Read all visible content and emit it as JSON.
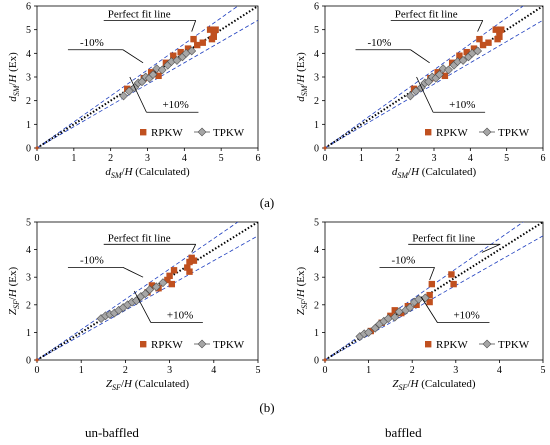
{
  "figure": {
    "panel_labels": [
      "(a)",
      "(b)"
    ],
    "bottom_labels": [
      "un-baffled",
      "baffled"
    ]
  },
  "colors": {
    "rpkw": "#c0501f",
    "tpkw": "#a6a6a6",
    "tpkw_edge": "#505050",
    "band": "#1f3fbf",
    "perfect": "#000000",
    "axis": "#000000"
  },
  "chart_data": [
    {
      "type": "scatter",
      "title": "",
      "xlabel": "d_SM/H (Calculated)",
      "ylabel": "d_SM/H (Ex)",
      "xlabel_parts": [
        "d",
        "SM",
        "/",
        "H",
        " (Calculated)"
      ],
      "ylabel_parts": [
        "d",
        "SM",
        "/",
        "H",
        " (Ex)"
      ],
      "xlim": [
        0,
        6
      ],
      "ylim": [
        0,
        6
      ],
      "xticks": [
        0,
        1,
        2,
        3,
        4,
        5,
        6
      ],
      "yticks": [
        0,
        1,
        2,
        3,
        4,
        5,
        6
      ],
      "grid": false,
      "legend_position": "lower-right",
      "annotations": [
        "Perfect fit line",
        "-10%",
        "+10%"
      ],
      "series": [
        {
          "name": "RPKW",
          "marker": "square",
          "points": [
            [
              2.45,
              2.5
            ],
            [
              2.9,
              2.95
            ],
            [
              3.1,
              3.2
            ],
            [
              3.3,
              3.05
            ],
            [
              3.5,
              3.6
            ],
            [
              3.7,
              3.9
            ],
            [
              3.9,
              4.05
            ],
            [
              4.1,
              4.2
            ],
            [
              4.25,
              4.6
            ],
            [
              4.35,
              4.35
            ],
            [
              4.5,
              4.45
            ],
            [
              4.7,
              5.0
            ],
            [
              4.8,
              4.95
            ],
            [
              4.85,
              5.0
            ],
            [
              4.8,
              4.7
            ],
            [
              4.75,
              4.6
            ]
          ]
        },
        {
          "name": "TPKW",
          "marker": "diamond",
          "points": [
            [
              2.35,
              2.2
            ],
            [
              2.5,
              2.4
            ],
            [
              2.65,
              2.55
            ],
            [
              2.75,
              2.75
            ],
            [
              2.85,
              2.8
            ],
            [
              2.95,
              3.0
            ],
            [
              3.05,
              2.95
            ],
            [
              3.15,
              3.1
            ],
            [
              3.25,
              3.35
            ],
            [
              3.4,
              3.3
            ],
            [
              3.55,
              3.5
            ],
            [
              3.65,
              3.65
            ],
            [
              3.8,
              3.7
            ],
            [
              3.95,
              3.85
            ],
            [
              4.05,
              4.0
            ],
            [
              4.2,
              4.1
            ]
          ]
        }
      ]
    },
    {
      "type": "scatter",
      "title": "",
      "xlabel": "d_SM/H (Calculated)",
      "ylabel": "d_SM/H (Ex)",
      "xlabel_parts": [
        "d",
        "SM",
        "/",
        "H",
        " (Calculated)"
      ],
      "ylabel_parts": [
        "d",
        "SM",
        "/",
        "H",
        " (Ex)"
      ],
      "xlim": [
        0,
        6
      ],
      "ylim": [
        0,
        6
      ],
      "xticks": [
        0,
        1,
        2,
        3,
        4,
        5,
        6
      ],
      "yticks": [
        0,
        1,
        2,
        3,
        4,
        5,
        6
      ],
      "grid": false,
      "legend_position": "lower-right",
      "annotations": [
        "Perfect fit line",
        "-10%",
        "+10%"
      ],
      "series": [
        {
          "name": "RPKW",
          "marker": "square",
          "points": [
            [
              2.45,
              2.5
            ],
            [
              2.9,
              2.95
            ],
            [
              3.1,
              3.2
            ],
            [
              3.3,
              3.05
            ],
            [
              3.5,
              3.6
            ],
            [
              3.7,
              3.9
            ],
            [
              3.9,
              4.05
            ],
            [
              4.1,
              4.2
            ],
            [
              4.25,
              4.6
            ],
            [
              4.35,
              4.35
            ],
            [
              4.5,
              4.45
            ],
            [
              4.7,
              5.0
            ],
            [
              4.8,
              4.95
            ],
            [
              4.85,
              5.0
            ],
            [
              4.8,
              4.7
            ],
            [
              4.75,
              4.6
            ]
          ]
        },
        {
          "name": "TPKW",
          "marker": "diamond",
          "points": [
            [
              2.35,
              2.2
            ],
            [
              2.5,
              2.4
            ],
            [
              2.65,
              2.55
            ],
            [
              2.75,
              2.75
            ],
            [
              2.85,
              2.8
            ],
            [
              2.95,
              3.0
            ],
            [
              3.05,
              2.95
            ],
            [
              3.15,
              3.1
            ],
            [
              3.25,
              3.35
            ],
            [
              3.4,
              3.3
            ],
            [
              3.55,
              3.5
            ],
            [
              3.65,
              3.65
            ],
            [
              3.8,
              3.7
            ],
            [
              3.95,
              3.85
            ],
            [
              4.05,
              4.0
            ],
            [
              4.2,
              4.1
            ]
          ]
        }
      ]
    },
    {
      "type": "scatter",
      "title": "",
      "xlabel": "Z_SF/H (Calculated)",
      "ylabel": "Z_SF/H (Ex)",
      "xlabel_parts": [
        "Z",
        "SF",
        "/",
        "H",
        " (Calculated)"
      ],
      "ylabel_parts": [
        "Z",
        "SF",
        "/",
        "H",
        " (Ex)"
      ],
      "xlim": [
        0,
        5
      ],
      "ylim": [
        0,
        5
      ],
      "xticks": [
        0,
        1,
        2,
        3,
        4,
        5
      ],
      "yticks": [
        0,
        1,
        2,
        3,
        4,
        5
      ],
      "grid": false,
      "legend_position": "lower-right",
      "annotations": [
        "Perfect fit line",
        "-10%",
        "+10%"
      ],
      "series": [
        {
          "name": "RPKW",
          "marker": "square",
          "points": [
            [
              2.5,
              2.45
            ],
            [
              2.6,
              2.7
            ],
            [
              2.75,
              2.6
            ],
            [
              2.95,
              2.9
            ],
            [
              3.0,
              3.05
            ],
            [
              3.05,
              2.75
            ],
            [
              3.1,
              3.25
            ],
            [
              3.4,
              3.35
            ],
            [
              3.45,
              3.55
            ],
            [
              3.5,
              3.7
            ],
            [
              3.45,
              3.2
            ],
            [
              3.55,
              3.6
            ]
          ]
        },
        {
          "name": "TPKW",
          "marker": "diamond",
          "points": [
            [
              1.45,
              1.5
            ],
            [
              1.55,
              1.6
            ],
            [
              1.65,
              1.65
            ],
            [
              1.75,
              1.7
            ],
            [
              1.85,
              1.8
            ],
            [
              1.95,
              1.9
            ],
            [
              2.05,
              2.0
            ],
            [
              2.15,
              2.1
            ],
            [
              2.25,
              2.15
            ],
            [
              2.35,
              2.3
            ],
            [
              2.45,
              2.4
            ],
            [
              2.55,
              2.55
            ],
            [
              2.7,
              2.65
            ],
            [
              2.85,
              2.8
            ]
          ]
        }
      ]
    },
    {
      "type": "scatter",
      "title": "",
      "xlabel": "Z_SF/H (Calculated)",
      "ylabel": "Z_SF/H (Ex)",
      "xlabel_parts": [
        "Z",
        "SF",
        "/",
        "H",
        " (Calculated)"
      ],
      "ylabel_parts": [
        "Z",
        "SF",
        "/",
        "H",
        " (Ex)"
      ],
      "xlim": [
        0,
        5
      ],
      "ylim": [
        0,
        5
      ],
      "xticks": [
        0,
        1,
        2,
        3,
        4,
        5
      ],
      "yticks": [
        0,
        1,
        2,
        3,
        4,
        5
      ],
      "grid": false,
      "legend_position": "lower-right",
      "annotations": [
        "Perfect fit line",
        "-10%",
        "+10%"
      ],
      "series": [
        {
          "name": "RPKW",
          "marker": "square",
          "points": [
            [
              1.05,
              1.05
            ],
            [
              1.3,
              1.35
            ],
            [
              1.5,
              1.6
            ],
            [
              1.6,
              1.8
            ],
            [
              1.75,
              1.7
            ],
            [
              1.9,
              1.95
            ],
            [
              2.1,
              2.0
            ],
            [
              2.4,
              2.1
            ],
            [
              2.4,
              2.35
            ],
            [
              2.45,
              2.75
            ],
            [
              2.9,
              3.1
            ],
            [
              2.95,
              2.75
            ]
          ]
        },
        {
          "name": "TPKW",
          "marker": "diamond",
          "points": [
            [
              0.8,
              0.85
            ],
            [
              0.9,
              0.95
            ],
            [
              1.0,
              1.0
            ],
            [
              1.15,
              1.15
            ],
            [
              1.25,
              1.3
            ],
            [
              1.35,
              1.4
            ],
            [
              1.45,
              1.5
            ],
            [
              1.6,
              1.55
            ],
            [
              1.7,
              1.75
            ],
            [
              1.85,
              1.8
            ],
            [
              1.95,
              1.9
            ],
            [
              2.05,
              2.1
            ],
            [
              2.15,
              2.2
            ],
            [
              2.3,
              2.25
            ]
          ]
        }
      ]
    }
  ]
}
